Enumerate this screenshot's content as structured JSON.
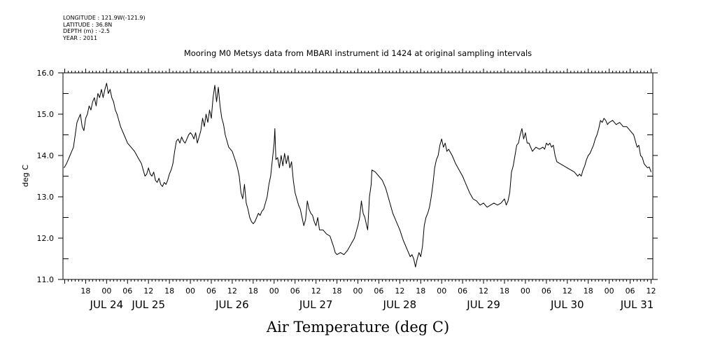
{
  "meta": {
    "lines": [
      "LONGITUDE : 121.9W(-121.9)",
      "LATITUDE : 36.8N",
      "DEPTH (m) : -2.5",
      "YEAR : 2011"
    ]
  },
  "chart_data": {
    "type": "line",
    "title": "Mooring M0 Metsys data from MBARI instrument id 1424 at original sampling intervals",
    "xlabel": "Air Temperature (deg C)",
    "ylabel": "deg C",
    "x_unit": "hours since JUL 24 00:00 2011",
    "xlim": [
      -12.5,
      156.5
    ],
    "ylim": [
      11.0,
      16.0
    ],
    "yticks": [
      11.0,
      12.0,
      13.0,
      14.0,
      15.0,
      16.0
    ],
    "ytick_labels": [
      "11.0",
      "12.0",
      "13.0",
      "14.0",
      "15.0",
      "16.0"
    ],
    "x_hour_ticks": [
      {
        "x": -6,
        "label": "18"
      },
      {
        "x": 0,
        "label": "00"
      },
      {
        "x": 6,
        "label": "06"
      },
      {
        "x": 12,
        "label": "12"
      },
      {
        "x": 18,
        "label": "18"
      },
      {
        "x": 24,
        "label": "00"
      },
      {
        "x": 30,
        "label": "06"
      },
      {
        "x": 36,
        "label": "12"
      },
      {
        "x": 42,
        "label": "18"
      },
      {
        "x": 48,
        "label": "00"
      },
      {
        "x": 54,
        "label": "06"
      },
      {
        "x": 60,
        "label": "12"
      },
      {
        "x": 66,
        "label": "18"
      },
      {
        "x": 72,
        "label": "00"
      },
      {
        "x": 78,
        "label": "06"
      },
      {
        "x": 84,
        "label": "12"
      },
      {
        "x": 90,
        "label": "18"
      },
      {
        "x": 96,
        "label": "00"
      },
      {
        "x": 102,
        "label": "06"
      },
      {
        "x": 108,
        "label": "12"
      },
      {
        "x": 114,
        "label": "18"
      },
      {
        "x": 120,
        "label": "00"
      },
      {
        "x": 126,
        "label": "06"
      },
      {
        "x": 132,
        "label": "12"
      },
      {
        "x": 138,
        "label": "18"
      },
      {
        "x": 144,
        "label": "00"
      },
      {
        "x": 150,
        "label": "06"
      },
      {
        "x": 156,
        "label": "12"
      }
    ],
    "x_day_labels": [
      {
        "x": 0,
        "label": "JUL 24"
      },
      {
        "x": 12,
        "label": "JUL 25"
      },
      {
        "x": 36,
        "label": "JUL 26"
      },
      {
        "x": 60,
        "label": "JUL 27"
      },
      {
        "x": 84,
        "label": "JUL 28"
      },
      {
        "x": 108,
        "label": "JUL 29"
      },
      {
        "x": 132,
        "label": "JUL 30"
      },
      {
        "x": 152,
        "label": "JUL 31"
      }
    ],
    "grid": false,
    "series": [
      {
        "color": "#000000",
        "points": [
          [
            -12.2,
            13.7
          ],
          [
            -11.5,
            13.8
          ],
          [
            -11.0,
            13.9
          ],
          [
            -10.5,
            14.0
          ],
          [
            -10.0,
            14.1
          ],
          [
            -9.5,
            14.2
          ],
          [
            -9.0,
            14.5
          ],
          [
            -8.5,
            14.8
          ],
          [
            -8.0,
            14.9
          ],
          [
            -7.5,
            15.0
          ],
          [
            -7.0,
            14.7
          ],
          [
            -6.5,
            14.6
          ],
          [
            -6.0,
            14.9
          ],
          [
            -5.5,
            15.0
          ],
          [
            -5.0,
            15.2
          ],
          [
            -4.5,
            15.1
          ],
          [
            -4.0,
            15.3
          ],
          [
            -3.5,
            15.4
          ],
          [
            -3.0,
            15.2
          ],
          [
            -2.5,
            15.5
          ],
          [
            -2.0,
            15.4
          ],
          [
            -1.5,
            15.6
          ],
          [
            -1.0,
            15.4
          ],
          [
            -0.5,
            15.6
          ],
          [
            0.0,
            15.75
          ],
          [
            0.5,
            15.5
          ],
          [
            1.0,
            15.6
          ],
          [
            1.5,
            15.4
          ],
          [
            2.0,
            15.3
          ],
          [
            2.5,
            15.1
          ],
          [
            3.0,
            15.0
          ],
          [
            4.0,
            14.7
          ],
          [
            5.0,
            14.5
          ],
          [
            6.0,
            14.3
          ],
          [
            7.0,
            14.2
          ],
          [
            8.0,
            14.1
          ],
          [
            9.0,
            13.95
          ],
          [
            10.0,
            13.8
          ],
          [
            10.5,
            13.65
          ],
          [
            11.0,
            13.5
          ],
          [
            11.5,
            13.55
          ],
          [
            12.0,
            13.7
          ],
          [
            12.5,
            13.55
          ],
          [
            13.0,
            13.5
          ],
          [
            13.5,
            13.6
          ],
          [
            14.0,
            13.4
          ],
          [
            14.5,
            13.35
          ],
          [
            15.0,
            13.45
          ],
          [
            15.5,
            13.3
          ],
          [
            16.0,
            13.25
          ],
          [
            16.5,
            13.35
          ],
          [
            17.0,
            13.3
          ],
          [
            17.5,
            13.4
          ],
          [
            18.0,
            13.55
          ],
          [
            18.5,
            13.65
          ],
          [
            19.0,
            13.8
          ],
          [
            19.5,
            14.1
          ],
          [
            20.0,
            14.35
          ],
          [
            20.5,
            14.4
          ],
          [
            21.0,
            14.3
          ],
          [
            21.5,
            14.45
          ],
          [
            22.0,
            14.35
          ],
          [
            22.5,
            14.3
          ],
          [
            23.0,
            14.4
          ],
          [
            23.5,
            14.5
          ],
          [
            24.0,
            14.55
          ],
          [
            24.5,
            14.5
          ],
          [
            25.0,
            14.4
          ],
          [
            25.5,
            14.55
          ],
          [
            26.0,
            14.3
          ],
          [
            26.5,
            14.45
          ],
          [
            27.0,
            14.6
          ],
          [
            27.5,
            14.9
          ],
          [
            28.0,
            14.7
          ],
          [
            28.5,
            15.0
          ],
          [
            29.0,
            14.8
          ],
          [
            29.5,
            15.1
          ],
          [
            30.0,
            14.9
          ],
          [
            30.5,
            15.4
          ],
          [
            31.0,
            15.7
          ],
          [
            31.5,
            15.3
          ],
          [
            32.0,
            15.65
          ],
          [
            32.5,
            15.2
          ],
          [
            33.0,
            14.9
          ],
          [
            33.5,
            14.75
          ],
          [
            34.0,
            14.5
          ],
          [
            35.0,
            14.2
          ],
          [
            36.0,
            14.1
          ],
          [
            37.0,
            13.85
          ],
          [
            37.5,
            13.7
          ],
          [
            38.0,
            13.5
          ],
          [
            38.5,
            13.1
          ],
          [
            39.0,
            12.95
          ],
          [
            39.5,
            13.3
          ],
          [
            40.0,
            12.85
          ],
          [
            40.5,
            12.7
          ],
          [
            41.0,
            12.5
          ],
          [
            41.5,
            12.4
          ],
          [
            42.0,
            12.35
          ],
          [
            42.5,
            12.4
          ],
          [
            43.0,
            12.5
          ],
          [
            43.5,
            12.6
          ],
          [
            44.0,
            12.55
          ],
          [
            44.5,
            12.65
          ],
          [
            45.0,
            12.7
          ],
          [
            45.5,
            12.85
          ],
          [
            46.0,
            13.0
          ],
          [
            46.5,
            13.3
          ],
          [
            47.0,
            13.5
          ],
          [
            47.5,
            13.9
          ],
          [
            48.0,
            14.3
          ],
          [
            48.2,
            14.65
          ],
          [
            48.5,
            13.9
          ],
          [
            49.0,
            13.95
          ],
          [
            49.5,
            13.7
          ],
          [
            50.0,
            14.0
          ],
          [
            50.5,
            13.75
          ],
          [
            51.0,
            14.05
          ],
          [
            51.5,
            13.8
          ],
          [
            52.0,
            14.0
          ],
          [
            52.5,
            13.7
          ],
          [
            53.0,
            13.85
          ],
          [
            53.5,
            13.4
          ],
          [
            54.0,
            13.1
          ],
          [
            54.5,
            12.95
          ],
          [
            55.0,
            12.8
          ],
          [
            55.5,
            12.7
          ],
          [
            56.0,
            12.5
          ],
          [
            56.5,
            12.3
          ],
          [
            57.0,
            12.45
          ],
          [
            57.5,
            12.9
          ],
          [
            58.0,
            12.7
          ],
          [
            58.5,
            12.6
          ],
          [
            59.0,
            12.55
          ],
          [
            59.5,
            12.4
          ],
          [
            60.0,
            12.3
          ],
          [
            60.5,
            12.5
          ],
          [
            61.0,
            12.2
          ],
          [
            62.0,
            12.2
          ],
          [
            63.0,
            12.1
          ],
          [
            64.0,
            12.05
          ],
          [
            65.0,
            11.8
          ],
          [
            65.5,
            11.65
          ],
          [
            66.0,
            11.6
          ],
          [
            67.0,
            11.65
          ],
          [
            68.0,
            11.6
          ],
          [
            69.0,
            11.7
          ],
          [
            70.0,
            11.85
          ],
          [
            71.0,
            12.0
          ],
          [
            72.0,
            12.3
          ],
          [
            72.5,
            12.5
          ],
          [
            73.0,
            12.9
          ],
          [
            73.5,
            12.6
          ],
          [
            74.0,
            12.5
          ],
          [
            74.5,
            12.3
          ],
          [
            74.8,
            12.2
          ],
          [
            75.3,
            13.0
          ],
          [
            75.8,
            13.3
          ],
          [
            76.0,
            13.65
          ],
          [
            77.0,
            13.6
          ],
          [
            78.0,
            13.5
          ],
          [
            79.0,
            13.4
          ],
          [
            80.0,
            13.2
          ],
          [
            81.0,
            12.9
          ],
          [
            82.0,
            12.6
          ],
          [
            83.0,
            12.4
          ],
          [
            84.0,
            12.2
          ],
          [
            85.0,
            11.95
          ],
          [
            86.0,
            11.75
          ],
          [
            87.0,
            11.55
          ],
          [
            87.5,
            11.6
          ],
          [
            88.0,
            11.5
          ],
          [
            88.5,
            11.3
          ],
          [
            89.0,
            11.5
          ],
          [
            89.5,
            11.65
          ],
          [
            90.0,
            11.55
          ],
          [
            90.5,
            11.8
          ],
          [
            91.0,
            12.3
          ],
          [
            91.5,
            12.5
          ],
          [
            92.0,
            12.6
          ],
          [
            92.5,
            12.75
          ],
          [
            93.0,
            13.0
          ],
          [
            93.5,
            13.3
          ],
          [
            94.0,
            13.7
          ],
          [
            94.5,
            13.9
          ],
          [
            95.0,
            14.0
          ],
          [
            95.5,
            14.25
          ],
          [
            96.0,
            14.4
          ],
          [
            96.5,
            14.2
          ],
          [
            97.0,
            14.3
          ],
          [
            97.5,
            14.1
          ],
          [
            98.0,
            14.15
          ],
          [
            99.0,
            14.0
          ],
          [
            100.0,
            13.8
          ],
          [
            101.0,
            13.65
          ],
          [
            102.0,
            13.5
          ],
          [
            103.0,
            13.3
          ],
          [
            104.0,
            13.1
          ],
          [
            105.0,
            12.95
          ],
          [
            106.0,
            12.9
          ],
          [
            107.0,
            12.8
          ],
          [
            108.0,
            12.85
          ],
          [
            109.0,
            12.75
          ],
          [
            110.0,
            12.8
          ],
          [
            111.0,
            12.85
          ],
          [
            112.0,
            12.8
          ],
          [
            113.0,
            12.85
          ],
          [
            114.0,
            12.95
          ],
          [
            114.5,
            12.8
          ],
          [
            115.0,
            12.9
          ],
          [
            115.5,
            13.1
          ],
          [
            116.0,
            13.6
          ],
          [
            116.5,
            13.75
          ],
          [
            117.0,
            14.0
          ],
          [
            117.5,
            14.25
          ],
          [
            118.0,
            14.3
          ],
          [
            118.5,
            14.5
          ],
          [
            119.0,
            14.65
          ],
          [
            119.5,
            14.4
          ],
          [
            120.0,
            14.55
          ],
          [
            120.5,
            14.3
          ],
          [
            121.0,
            14.3
          ],
          [
            121.5,
            14.2
          ],
          [
            122.0,
            14.1
          ],
          [
            123.0,
            14.2
          ],
          [
            124.0,
            14.15
          ],
          [
            125.0,
            14.2
          ],
          [
            125.5,
            14.15
          ],
          [
            126.0,
            14.3
          ],
          [
            126.5,
            14.25
          ],
          [
            127.0,
            14.3
          ],
          [
            127.5,
            14.2
          ],
          [
            128.0,
            14.25
          ],
          [
            128.5,
            14.0
          ],
          [
            129.0,
            13.85
          ],
          [
            131.0,
            13.75
          ],
          [
            133.0,
            13.65
          ],
          [
            134.0,
            13.6
          ],
          [
            135.0,
            13.5
          ],
          [
            135.5,
            13.55
          ],
          [
            136.0,
            13.5
          ],
          [
            136.5,
            13.65
          ],
          [
            137.0,
            13.75
          ],
          [
            137.5,
            13.9
          ],
          [
            138.0,
            14.0
          ],
          [
            138.5,
            14.05
          ],
          [
            139.0,
            14.15
          ],
          [
            139.5,
            14.25
          ],
          [
            140.0,
            14.4
          ],
          [
            140.5,
            14.5
          ],
          [
            141.0,
            14.65
          ],
          [
            141.5,
            14.85
          ],
          [
            142.0,
            14.8
          ],
          [
            142.5,
            14.9
          ],
          [
            143.0,
            14.85
          ],
          [
            143.5,
            14.75
          ],
          [
            144.0,
            14.8
          ],
          [
            145.0,
            14.85
          ],
          [
            146.0,
            14.75
          ],
          [
            147.0,
            14.8
          ],
          [
            148.0,
            14.7
          ],
          [
            149.0,
            14.7
          ],
          [
            150.0,
            14.6
          ],
          [
            151.0,
            14.5
          ],
          [
            151.5,
            14.35
          ],
          [
            152.0,
            14.2
          ],
          [
            152.5,
            14.25
          ],
          [
            153.0,
            14.0
          ],
          [
            153.5,
            13.95
          ],
          [
            154.0,
            13.8
          ],
          [
            154.5,
            13.75
          ],
          [
            155.0,
            13.7
          ],
          [
            155.5,
            13.72
          ],
          [
            156.0,
            13.6
          ]
        ]
      }
    ]
  }
}
